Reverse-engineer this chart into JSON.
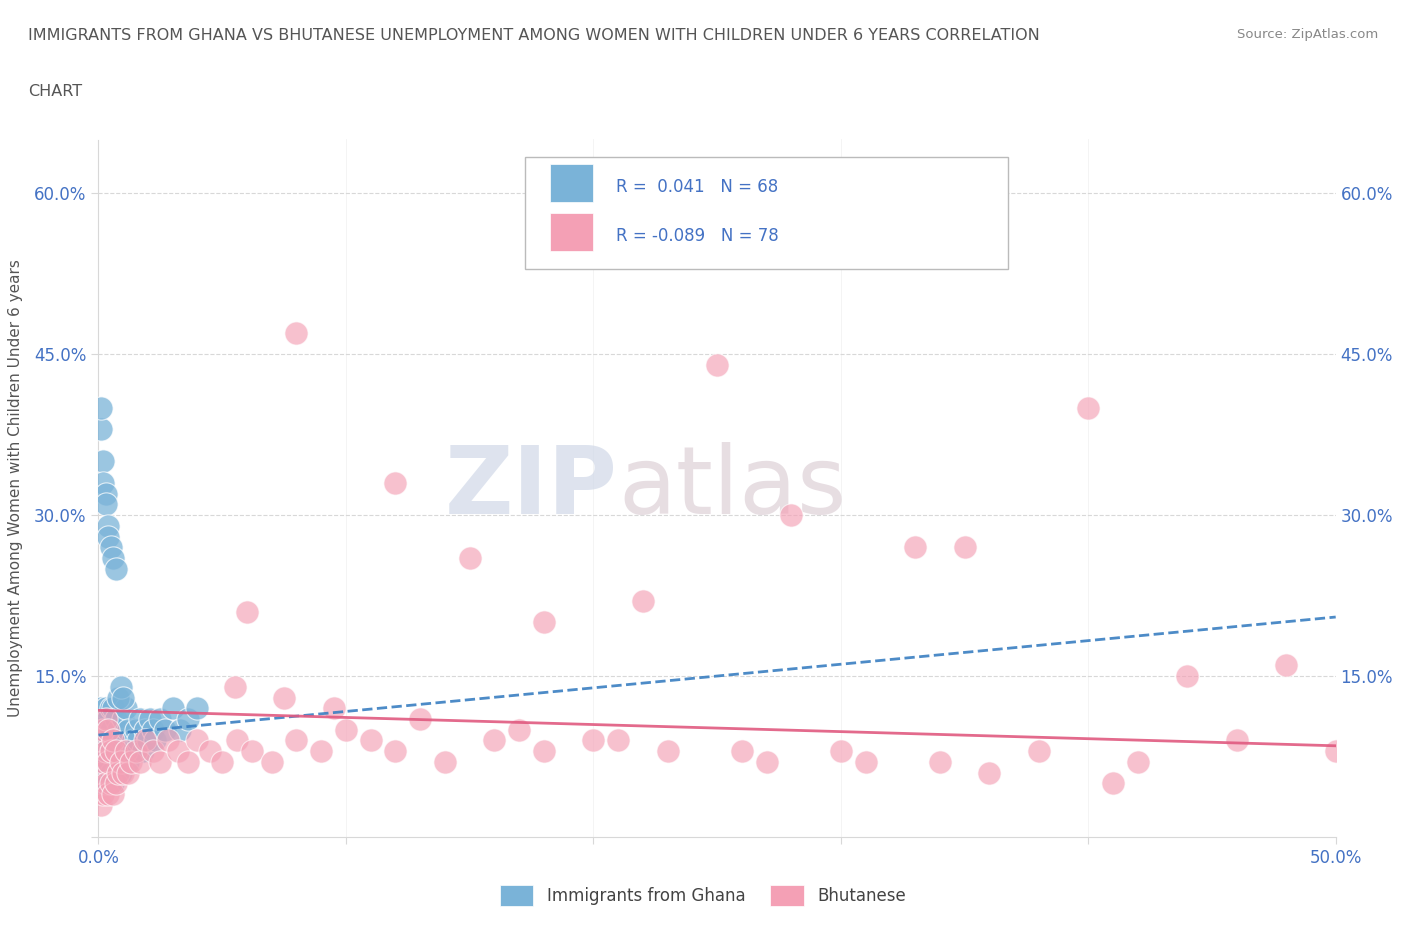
{
  "title_line1": "IMMIGRANTS FROM GHANA VS BHUTANESE UNEMPLOYMENT AMONG WOMEN WITH CHILDREN UNDER 6 YEARS CORRELATION",
  "title_line2": "CHART",
  "source": "Source: ZipAtlas.com",
  "ylabel": "Unemployment Among Women with Children Under 6 years",
  "xlim": [
    0.0,
    0.5
  ],
  "ylim": [
    0.0,
    0.65
  ],
  "watermark_ZIP": "ZIP",
  "watermark_atlas": "atlas",
  "blue_color": "#7ab3d8",
  "pink_color": "#f4a0b5",
  "blue_dark": "#3a7fc1",
  "pink_dark": "#e05a80",
  "ghana_trend_x": [
    0.0,
    0.5
  ],
  "ghana_trend_y": [
    0.095,
    0.205
  ],
  "bhutan_trend_x": [
    0.0,
    0.5
  ],
  "bhutan_trend_y": [
    0.118,
    0.085
  ],
  "ghana_pts_x": [
    0.001,
    0.001,
    0.001,
    0.001,
    0.001,
    0.002,
    0.002,
    0.002,
    0.002,
    0.003,
    0.003,
    0.003,
    0.003,
    0.004,
    0.004,
    0.004,
    0.004,
    0.005,
    0.005,
    0.005,
    0.005,
    0.006,
    0.006,
    0.006,
    0.007,
    0.007,
    0.007,
    0.008,
    0.008,
    0.009,
    0.009,
    0.01,
    0.01,
    0.011,
    0.011,
    0.012,
    0.012,
    0.013,
    0.014,
    0.015,
    0.016,
    0.017,
    0.018,
    0.019,
    0.02,
    0.021,
    0.022,
    0.023,
    0.025,
    0.027,
    0.03,
    0.033,
    0.036,
    0.04,
    0.001,
    0.001,
    0.002,
    0.002,
    0.003,
    0.003,
    0.004,
    0.004,
    0.005,
    0.006,
    0.007,
    0.008,
    0.009,
    0.01
  ],
  "ghana_pts_y": [
    0.05,
    0.07,
    0.08,
    0.1,
    0.12,
    0.05,
    0.07,
    0.09,
    0.11,
    0.06,
    0.08,
    0.1,
    0.12,
    0.05,
    0.07,
    0.09,
    0.11,
    0.06,
    0.08,
    0.1,
    0.12,
    0.05,
    0.09,
    0.12,
    0.06,
    0.08,
    0.11,
    0.07,
    0.1,
    0.06,
    0.09,
    0.07,
    0.11,
    0.08,
    0.12,
    0.07,
    0.1,
    0.08,
    0.09,
    0.1,
    0.09,
    0.11,
    0.08,
    0.1,
    0.09,
    0.11,
    0.1,
    0.09,
    0.11,
    0.1,
    0.12,
    0.1,
    0.11,
    0.12,
    0.38,
    0.4,
    0.35,
    0.33,
    0.32,
    0.31,
    0.29,
    0.28,
    0.27,
    0.26,
    0.25,
    0.13,
    0.14,
    0.13
  ],
  "bhutan_pts_x": [
    0.001,
    0.001,
    0.001,
    0.002,
    0.002,
    0.002,
    0.003,
    0.003,
    0.003,
    0.004,
    0.004,
    0.004,
    0.005,
    0.005,
    0.006,
    0.006,
    0.007,
    0.007,
    0.008,
    0.009,
    0.01,
    0.011,
    0.012,
    0.013,
    0.015,
    0.017,
    0.019,
    0.022,
    0.025,
    0.028,
    0.032,
    0.036,
    0.04,
    0.045,
    0.05,
    0.056,
    0.062,
    0.07,
    0.08,
    0.09,
    0.1,
    0.11,
    0.12,
    0.14,
    0.16,
    0.18,
    0.2,
    0.23,
    0.27,
    0.3,
    0.34,
    0.38,
    0.42,
    0.46,
    0.5,
    0.08,
    0.25,
    0.4,
    0.28,
    0.15,
    0.33,
    0.48,
    0.06,
    0.18,
    0.35,
    0.22,
    0.44,
    0.12,
    0.055,
    0.075,
    0.095,
    0.13,
    0.17,
    0.21,
    0.26,
    0.31,
    0.36,
    0.41
  ],
  "bhutan_pts_y": [
    0.03,
    0.06,
    0.09,
    0.04,
    0.07,
    0.1,
    0.05,
    0.08,
    0.11,
    0.04,
    0.07,
    0.1,
    0.05,
    0.08,
    0.04,
    0.09,
    0.05,
    0.08,
    0.06,
    0.07,
    0.06,
    0.08,
    0.06,
    0.07,
    0.08,
    0.07,
    0.09,
    0.08,
    0.07,
    0.09,
    0.08,
    0.07,
    0.09,
    0.08,
    0.07,
    0.09,
    0.08,
    0.07,
    0.09,
    0.08,
    0.1,
    0.09,
    0.08,
    0.07,
    0.09,
    0.08,
    0.09,
    0.08,
    0.07,
    0.08,
    0.07,
    0.08,
    0.07,
    0.09,
    0.08,
    0.47,
    0.44,
    0.4,
    0.3,
    0.26,
    0.27,
    0.16,
    0.21,
    0.2,
    0.27,
    0.22,
    0.15,
    0.33,
    0.14,
    0.13,
    0.12,
    0.11,
    0.1,
    0.09,
    0.08,
    0.07,
    0.06,
    0.05
  ],
  "background_color": "#ffffff",
  "title_color": "#555555",
  "source_color": "#888888",
  "tick_color": "#4472c4",
  "grid_color": "#d8d8d8",
  "ylabel_color": "#555555"
}
